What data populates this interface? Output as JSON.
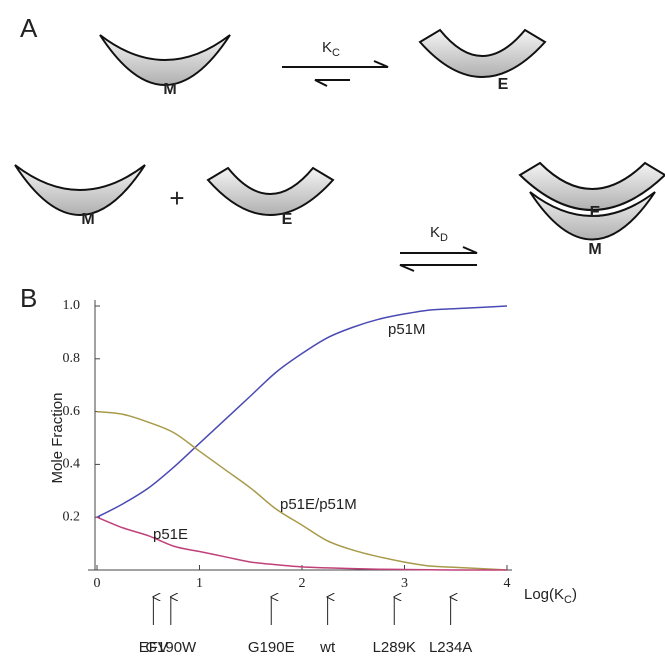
{
  "diagram": {
    "panel_a": "A",
    "panel_b": "B",
    "shapes": [
      "M",
      "E",
      "M",
      "E",
      "E",
      "M"
    ],
    "plus": "+",
    "k_c": [
      "K",
      "C"
    ],
    "k_d": [
      "K",
      "D"
    ]
  },
  "chart_data": {
    "type": "line",
    "y_label": "Mole Fraction",
    "x_label": [
      "Log(K",
      "C",
      ")"
    ],
    "x": [
      0,
      0.25,
      0.5,
      0.75,
      1,
      1.25,
      1.5,
      1.75,
      2,
      2.25,
      2.5,
      2.75,
      3,
      3.25,
      3.5,
      3.75,
      4
    ],
    "series": [
      {
        "name": "p51M",
        "color": "#4a4ab4",
        "values": [
          0.2,
          0.25,
          0.31,
          0.39,
          0.48,
          0.57,
          0.66,
          0.75,
          0.82,
          0.88,
          0.92,
          0.95,
          0.97,
          0.985,
          0.99,
          0.995,
          1.0
        ]
      },
      {
        "name": "p51E/p51M",
        "color": "#a89a4a",
        "values": [
          0.6,
          0.59,
          0.56,
          0.52,
          0.45,
          0.38,
          0.31,
          0.23,
          0.17,
          0.11,
          0.075,
          0.05,
          0.03,
          0.015,
          0.01,
          0.005,
          0
        ]
      },
      {
        "name": "p51E",
        "color": "#c0407a",
        "values": [
          0.2,
          0.16,
          0.13,
          0.09,
          0.07,
          0.05,
          0.03,
          0.02,
          0.012,
          0.008,
          0.005,
          0.003,
          0.002,
          0.001,
          0,
          0,
          0
        ]
      }
    ],
    "xlim": [
      0,
      4
    ],
    "xticks": [
      0,
      1,
      2,
      3,
      4
    ],
    "ylim": [
      0,
      1.0
    ],
    "yticks": [
      0.2,
      0.4,
      0.6,
      0.8,
      {
        "value": 1.0,
        "label": "1.0"
      }
    ],
    "annotations": [
      {
        "label": "EFV",
        "x": 0.55
      },
      {
        "label": "G190W",
        "x": 0.72
      },
      {
        "label": "G190E",
        "x": 1.7
      },
      {
        "label": "wt",
        "x": 2.25
      },
      {
        "label": "L289K",
        "x": 2.9
      },
      {
        "label": "L234A",
        "x": 3.45
      }
    ]
  }
}
